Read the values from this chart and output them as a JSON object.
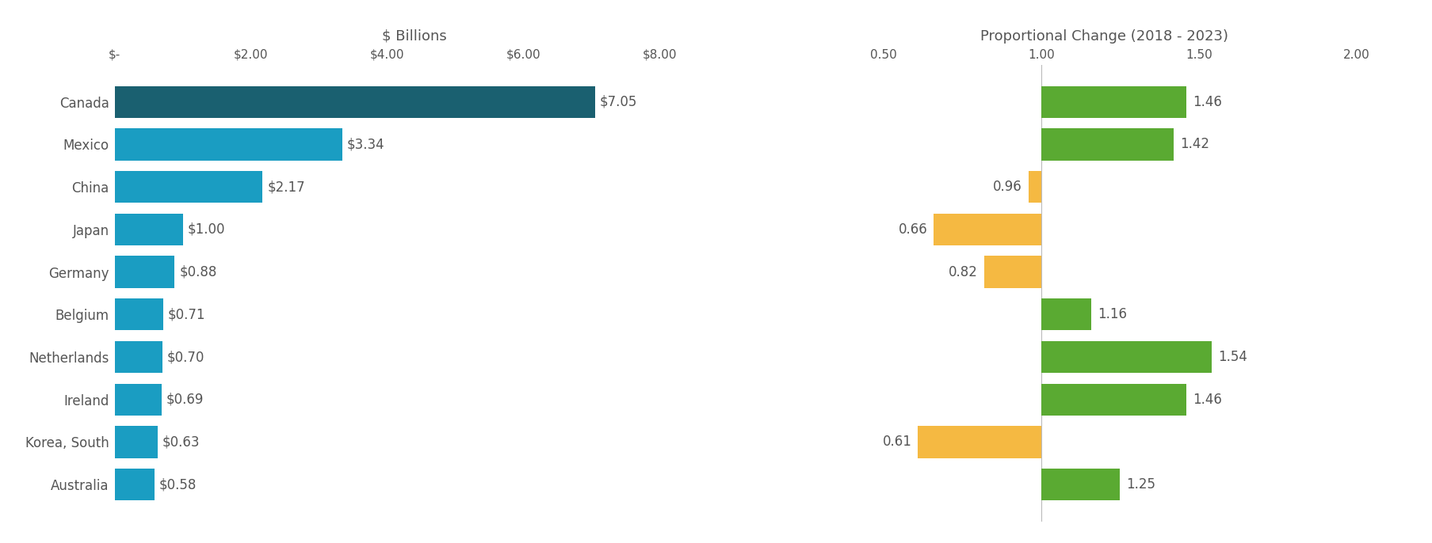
{
  "countries": [
    "Canada",
    "Mexico",
    "China",
    "Japan",
    "Germany",
    "Belgium",
    "Netherlands",
    "Ireland",
    "Korea, South",
    "Australia"
  ],
  "exports_billions": [
    7.05,
    3.34,
    2.17,
    1.0,
    0.88,
    0.71,
    0.7,
    0.69,
    0.63,
    0.58
  ],
  "export_labels": [
    "$7.05",
    "$3.34",
    "$2.17",
    "$1.00",
    "$0.88",
    "$0.71",
    "$0.70",
    "$0.69",
    "$0.63",
    "$0.58"
  ],
  "prop_change": [
    1.46,
    1.42,
    0.96,
    0.66,
    0.82,
    1.16,
    1.54,
    1.46,
    0.61,
    1.25
  ],
  "prop_labels": [
    "1.46",
    "1.42",
    "0.96",
    "0.66",
    "0.82",
    "1.16",
    "1.54",
    "1.46",
    "0.61",
    "1.25"
  ],
  "bar_colors_left": [
    "#1a6070",
    "#1a9dc2",
    "#1a9dc2",
    "#1a9dc2",
    "#1a9dc2",
    "#1a9dc2",
    "#1a9dc2",
    "#1a9dc2",
    "#1a9dc2",
    "#1a9dc2"
  ],
  "bar_colors_right": [
    "#5aaa32",
    "#5aaa32",
    "#f5b942",
    "#f5b942",
    "#f5b942",
    "#5aaa32",
    "#5aaa32",
    "#5aaa32",
    "#f5b942",
    "#5aaa32"
  ],
  "left_title": "$ Billions",
  "right_title": "Proportional Change (2018 - 2023)",
  "left_xlim": [
    0,
    8.8
  ],
  "left_xticks": [
    0,
    2,
    4,
    6,
    8
  ],
  "left_xticklabels": [
    "$-",
    "$2.00",
    "$4.00",
    "$6.00",
    "$8.00"
  ],
  "right_xlim": [
    0.25,
    2.15
  ],
  "right_xticks": [
    0.5,
    1.0,
    1.5,
    2.0
  ],
  "right_xticklabels": [
    "0.50",
    "1.00",
    "1.50",
    "2.00"
  ],
  "background_color": "#ffffff",
  "label_fontsize": 12,
  "tick_fontsize": 11,
  "title_fontsize": 13,
  "bar_height": 0.75,
  "vline_color": "#bbbbbb",
  "text_color": "#555555"
}
